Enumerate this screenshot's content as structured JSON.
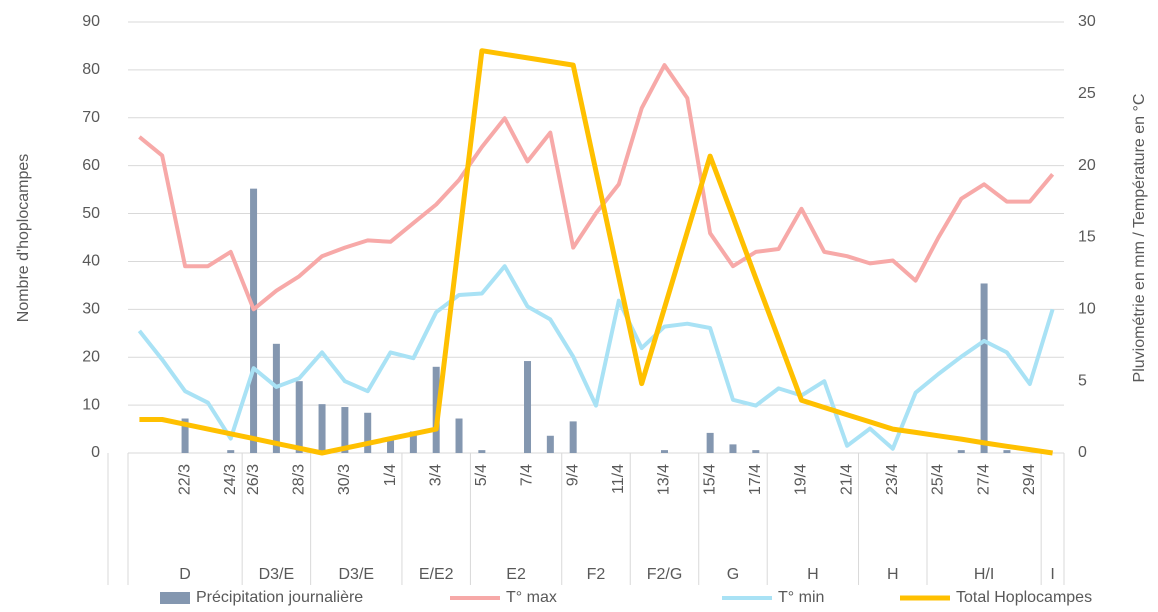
{
  "chart_data": {
    "type": "combo",
    "ylabel": "Nombre d'hoplocampes",
    "y2label": "Pluviométrie en mm / Température en °C",
    "categories": [
      null,
      null,
      "22/3",
      null,
      "24/3",
      "26/3",
      null,
      "28/3",
      null,
      "30/3",
      null,
      "1/4",
      null,
      "3/4",
      null,
      "5/4",
      null,
      "7/4",
      null,
      "9/4",
      null,
      "11/4",
      null,
      "13/4",
      null,
      "15/4",
      null,
      "17/4",
      null,
      "19/4",
      null,
      "21/4",
      null,
      "23/4",
      null,
      "25/4",
      null,
      "27/4",
      null,
      "29/4",
      null
    ],
    "groups": [
      {
        "label": "D",
        "count": 5
      },
      {
        "label": "D3/E",
        "count": 3
      },
      {
        "label": "D3/E",
        "count": 4
      },
      {
        "label": "E/E2",
        "count": 3
      },
      {
        "label": "E2",
        "count": 4
      },
      {
        "label": "F2",
        "count": 3
      },
      {
        "label": "F2/G",
        "count": 3
      },
      {
        "label": "G",
        "count": 3
      },
      {
        "label": "H",
        "count": 4
      },
      {
        "label": "H",
        "count": 3
      },
      {
        "label": "H/I",
        "count": 5
      },
      {
        "label": "I",
        "count": 1
      }
    ],
    "ylim": [
      0,
      90
    ],
    "yticks": [
      0,
      10,
      20,
      30,
      40,
      50,
      60,
      70,
      80,
      90
    ],
    "y2lim": [
      0,
      30
    ],
    "y2ticks": [
      0,
      5,
      10,
      15,
      20,
      25,
      30
    ],
    "grid": true,
    "legend": "bottom",
    "series": [
      {
        "name": "Précipitation journalière",
        "type": "bar",
        "axis": "y2",
        "color": "#8497b0",
        "values": [
          0,
          0,
          2.4,
          0,
          0.2,
          18.4,
          7.6,
          5.0,
          3.4,
          3.2,
          2.8,
          1.1,
          1.5,
          6.0,
          2.4,
          0.2,
          0,
          6.4,
          1.2,
          2.2,
          0,
          0,
          0,
          0.2,
          0,
          1.4,
          0.6,
          0.2,
          0,
          0,
          0,
          0,
          0,
          0,
          0,
          0,
          0.2,
          11.8,
          0.2,
          0,
          0
        ]
      },
      {
        "name": "T° max",
        "type": "line",
        "axis": "y2",
        "color": "#f7a9a8",
        "width": 4,
        "values": [
          22,
          20.7,
          13,
          13,
          14,
          10,
          11.3,
          12.3,
          13.7,
          14.3,
          14.8,
          14.7,
          16,
          17.3,
          19,
          21.3,
          23.3,
          20.3,
          22.3,
          14.3,
          16.7,
          18.7,
          24,
          27,
          24.7,
          15.3,
          13,
          14,
          14.2,
          17,
          14,
          13.7,
          13.2,
          13.4,
          12,
          15,
          17.7,
          18.7,
          17.5,
          17.5,
          19.4
        ]
      },
      {
        "name": "T° min",
        "type": "line",
        "axis": "y2",
        "color": "#a9e2f5",
        "width": 4,
        "values": [
          8.5,
          6.5,
          4.3,
          3.5,
          1,
          5.9,
          4.6,
          5.2,
          7,
          5,
          4.3,
          7,
          6.6,
          9.8,
          11,
          11.1,
          13,
          10.2,
          9.3,
          6.7,
          3.3,
          10.6,
          7.3,
          8.8,
          9,
          8.7,
          3.7,
          3.3,
          4.5,
          4,
          5,
          0.5,
          1.7,
          0.3,
          4.2,
          5.5,
          6.7,
          7.8,
          7,
          4.8,
          10
        ]
      },
      {
        "name": "Total Hoplocampes",
        "type": "line",
        "color": "#ffc000",
        "width": 5,
        "values": [
          7,
          7,
          6,
          5,
          4,
          3,
          2,
          1,
          0,
          1,
          2,
          3,
          4,
          5,
          44.5,
          84,
          83.25,
          82.5,
          81.75,
          81,
          58.8,
          36.7,
          14.5,
          30.3,
          46.2,
          62,
          49.3,
          36.5,
          23.8,
          11,
          9.5,
          8,
          6.5,
          5,
          4.3,
          3.6,
          2.9,
          2.1,
          1.4,
          0.7,
          0
        ]
      }
    ]
  }
}
